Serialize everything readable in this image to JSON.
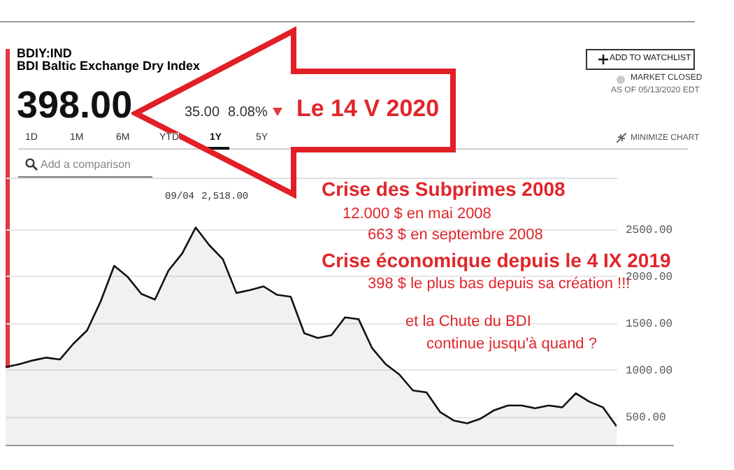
{
  "chart_data": {
    "type": "area",
    "title": "BDI Baltic Exchange Dry Index",
    "subtitle": "BDIY:IND",
    "annotations": [
      "398.00",
      "35.00",
      "8.08%",
      "Le 14 V 2020",
      "Crise des Subprimes 2008",
      "12.000 $ en mai 2008",
      "663 $ en septembre 2008",
      "Crise économique depuis le 4 IX 2019",
      "398 $ le plus bas depuis sa création !!!",
      "et la Chute du BDI",
      "continue jusqu'à quand ?",
      "09/04",
      "2,518.00",
      "MARKET CLOSED",
      "AS OF 05/13/2020 EDT",
      "1D",
      "1M",
      "6M",
      "YTD",
      "1Y",
      "5Y",
      "MINIMIZE CHART",
      "Add a comparison",
      "ADD TO WATCHLIST"
    ],
    "categories": [
      null,
      null,
      null,
      null,
      null,
      null,
      null,
      null,
      null,
      null,
      null,
      null,
      null,
      null,
      null,
      null,
      null,
      null,
      null,
      null,
      null,
      null,
      null,
      null,
      null,
      null,
      null,
      null,
      null,
      null,
      null,
      null,
      null,
      null,
      null,
      null,
      null,
      null,
      null,
      null,
      null,
      null,
      null,
      null,
      null,
      null
    ],
    "series": [
      {
        "color": "#111111",
        "values": [
          1030,
          1060,
          1100,
          1130,
          1110,
          1280,
          1420,
          1730,
          2110,
          1990,
          1810,
          1750,
          2060,
          2240,
          2518,
          2330,
          2180,
          1820,
          1850,
          1890,
          1800,
          1780,
          1390,
          1340,
          1370,
          1560,
          1540,
          1230,
          1060,
          950,
          780,
          760,
          550,
          460,
          430,
          480,
          570,
          620,
          620,
          590,
          620,
          600,
          750,
          660,
          600,
          398
        ]
      }
    ],
    "ylim": [
      200,
      3050
    ],
    "yticks": [
      {
        "value": 500,
        "label": "500.00"
      },
      {
        "value": 1000,
        "label": "1000.00"
      },
      {
        "value": 1500,
        "label": "1500.00"
      },
      {
        "value": 2000,
        "label": "2000.00"
      },
      {
        "value": 2500,
        "label": "2500.00"
      }
    ],
    "grid": "y",
    "legend": false
  }
}
